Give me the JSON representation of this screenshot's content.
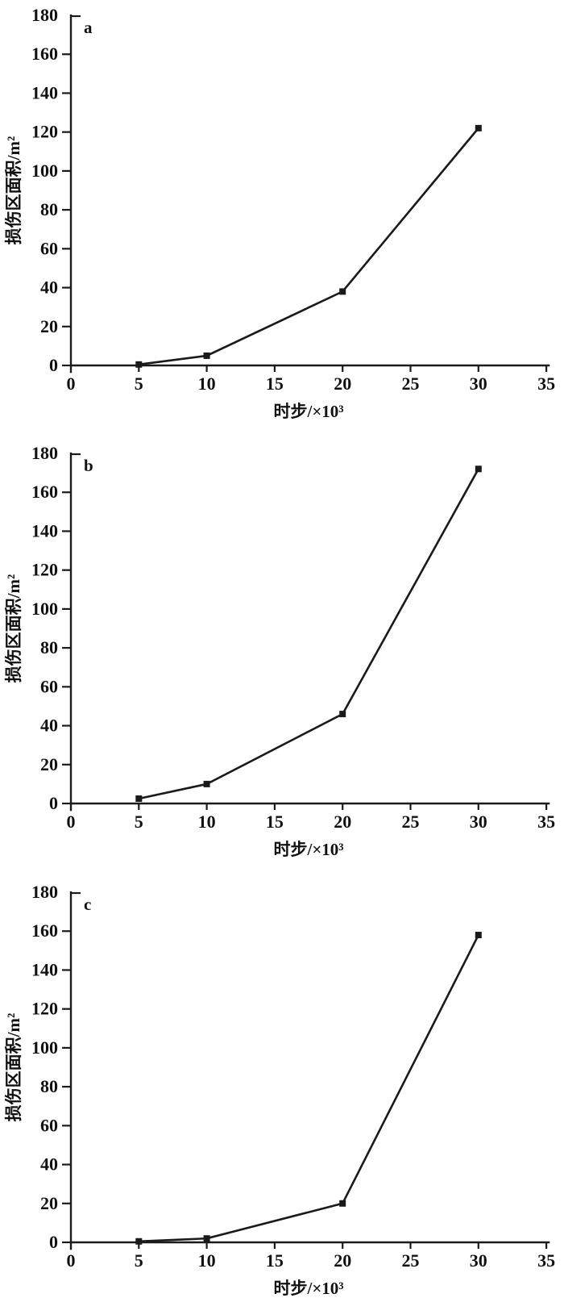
{
  "figure": {
    "background_color": "#ffffff",
    "line_color": "#1a1a1a",
    "text_color": "#111111",
    "panel_labels": [
      "a",
      "b",
      "c"
    ]
  },
  "chart_data": [
    {
      "type": "line",
      "panel_label": "a",
      "title": "",
      "xlabel": "时步/×10³",
      "ylabel": "损伤区面积/m²",
      "xlim": [
        0,
        35
      ],
      "ylim": [
        0,
        180
      ],
      "x_ticks": [
        0,
        5,
        10,
        15,
        20,
        25,
        30,
        35
      ],
      "y_ticks": [
        0,
        20,
        40,
        60,
        80,
        100,
        120,
        140,
        160,
        180
      ],
      "grid": false,
      "legend": "none",
      "marker": "filled-square",
      "series": [
        {
          "name": "damage-zone-area",
          "x": [
            5,
            10,
            20,
            30
          ],
          "values": [
            0.5,
            5,
            38,
            122
          ]
        }
      ]
    },
    {
      "type": "line",
      "panel_label": "b",
      "title": "",
      "xlabel": "时步/×10³",
      "ylabel": "损伤区面积/m²",
      "xlim": [
        0,
        35
      ],
      "ylim": [
        0,
        180
      ],
      "x_ticks": [
        0,
        5,
        10,
        15,
        20,
        25,
        30,
        35
      ],
      "y_ticks": [
        0,
        20,
        40,
        60,
        80,
        100,
        120,
        140,
        160,
        180
      ],
      "grid": false,
      "legend": "none",
      "marker": "filled-square",
      "series": [
        {
          "name": "damage-zone-area",
          "x": [
            5,
            10,
            20,
            30
          ],
          "values": [
            2.5,
            10,
            46,
            172
          ]
        }
      ]
    },
    {
      "type": "line",
      "panel_label": "c",
      "title": "",
      "xlabel": "时步/×10³",
      "ylabel": "损伤区面积/m²",
      "xlim": [
        0,
        35
      ],
      "ylim": [
        0,
        180
      ],
      "x_ticks": [
        0,
        5,
        10,
        15,
        20,
        25,
        30,
        35
      ],
      "y_ticks": [
        0,
        20,
        40,
        60,
        80,
        100,
        120,
        140,
        160,
        180
      ],
      "grid": false,
      "legend": "none",
      "marker": "filled-square",
      "series": [
        {
          "name": "damage-zone-area",
          "x": [
            5,
            10,
            20,
            30
          ],
          "values": [
            0.5,
            2,
            20,
            158
          ]
        }
      ]
    }
  ]
}
